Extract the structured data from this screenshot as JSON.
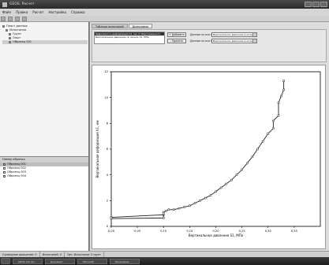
{
  "window": {
    "title": "GEOS. Расчет"
  },
  "menu": [
    "Файл",
    "Правка",
    "Расчет",
    "Настройка",
    "Справка"
  ],
  "tree": {
    "root": "Пласт данных",
    "child": "Испытания",
    "items": [
      "Грунт",
      "Опыт",
      "Образец 001"
    ]
  },
  "list": {
    "header": "Номер образца",
    "items": [
      "Образец 001",
      "Образец 002",
      "Образец 003",
      "Образец 004"
    ]
  },
  "tabs": [
    "Таблица испытаний",
    "Диаграмма"
  ],
  "series_list": [
    "Зависимость деформации h1, мм от Вертикального",
    "Вертикальное давление по шкале 1S, МПа"
  ],
  "controls": {
    "add_button": "+ Добавить",
    "delete_button": "- Удалить",
    "x_axis_label": "Данные по оси X",
    "y_axis_label": "Данные по оси Y",
    "x_axis_value": "Вертикальное давление в штам",
    "y_axis_value": "Вертикальное давление в штам"
  },
  "status": [
    "Суммарное вращение: 0",
    "Испытаний: 4",
    "Тип: Испытание 3 грунт"
  ],
  "taskbar": [
    "GEOS. Расчет",
    "Документ",
    "Microsoft",
    "Проводник"
  ],
  "colors": {
    "line": "#222222",
    "grid": "#000000"
  },
  "chart_data": {
    "type": "line",
    "xlabel": "Вертикальное давление S1, МПа",
    "ylabel": "Вертикальная деформация h1, мм",
    "xlim": [
      0,
      0.4
    ],
    "ylim": [
      0,
      12
    ],
    "x_ticks": [
      "0,00",
      "0,05",
      "0,10",
      "0,15",
      "0,20",
      "0,25",
      "0,30",
      "0,35"
    ],
    "y_ticks": [
      "0",
      "2",
      "4",
      "6",
      "8",
      "10",
      "12"
    ],
    "series": [
      {
        "x": [
          0.0,
          0.1,
          0.1,
          0.105,
          0.11,
          0.12,
          0.13,
          0.14,
          0.15,
          0.16,
          0.17,
          0.18,
          0.19,
          0.2,
          0.21,
          0.22,
          0.23,
          0.24,
          0.25,
          0.26,
          0.27,
          0.28,
          0.29,
          0.3,
          0.31,
          0.31,
          0.32,
          0.32,
          0.325,
          0.33,
          0.33
        ],
        "y": [
          0.7,
          0.9,
          1.1,
          1.2,
          1.3,
          1.3,
          1.4,
          1.5,
          1.6,
          1.8,
          2.0,
          2.2,
          2.4,
          2.7,
          3.0,
          3.3,
          3.6,
          4.0,
          4.4,
          4.9,
          5.4,
          6.0,
          6.6,
          7.2,
          7.6,
          8.2,
          8.6,
          9.6,
          10.1,
          10.6,
          11.3
        ]
      },
      {
        "x": [
          0.0,
          0.1,
          0.1
        ],
        "y": [
          0.6,
          0.65,
          1.0
        ]
      }
    ]
  }
}
